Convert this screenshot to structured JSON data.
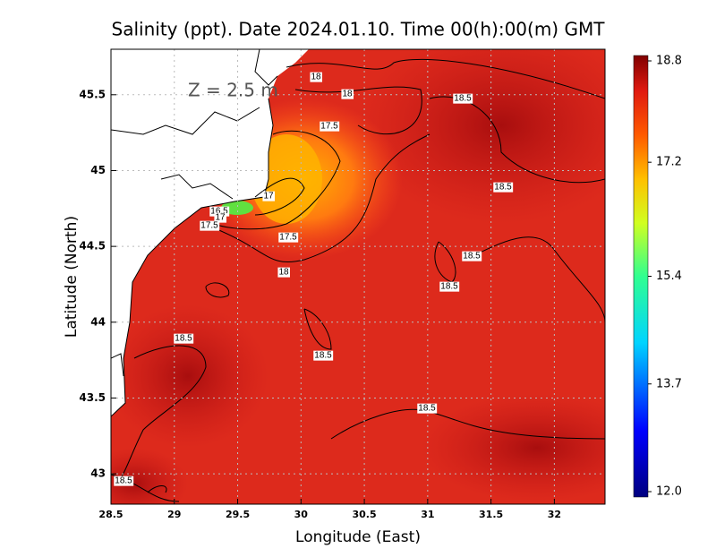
{
  "chart_data": {
    "type": "contour-map",
    "title": "Salinity (ppt). Date 2024.01.10. Time 00(h):00(m) GMT",
    "annotation": "Z = 2.5 m",
    "x_label": "Longitude (East)",
    "y_label": "Latitude (North)",
    "xlim": [
      28.5,
      32.4
    ],
    "ylim": [
      42.8,
      45.8
    ],
    "xticks": [
      28.5,
      29,
      29.5,
      30,
      30.5,
      31,
      31.5,
      32
    ],
    "yticks": [
      43,
      43.5,
      44,
      44.5,
      45,
      45.5
    ],
    "grid": true,
    "colorbar": {
      "lim": [
        12,
        18.8
      ],
      "ticks": [
        {
          "value": 18.8,
          "label": "18.8"
        },
        {
          "value": 17.2,
          "label": "17.2"
        },
        {
          "value": 15.4,
          "label": "15.4"
        },
        {
          "value": 13.7,
          "label": "13.7"
        },
        {
          "value": 12,
          "label": "12.0"
        }
      ]
    },
    "contour_labels": [
      18,
      18,
      18.5,
      17.5,
      18.5,
      17,
      16.5,
      17,
      17.5,
      17.5,
      18.5,
      18.5,
      18,
      18.5,
      18.5,
      18.5,
      18.5
    ]
  }
}
